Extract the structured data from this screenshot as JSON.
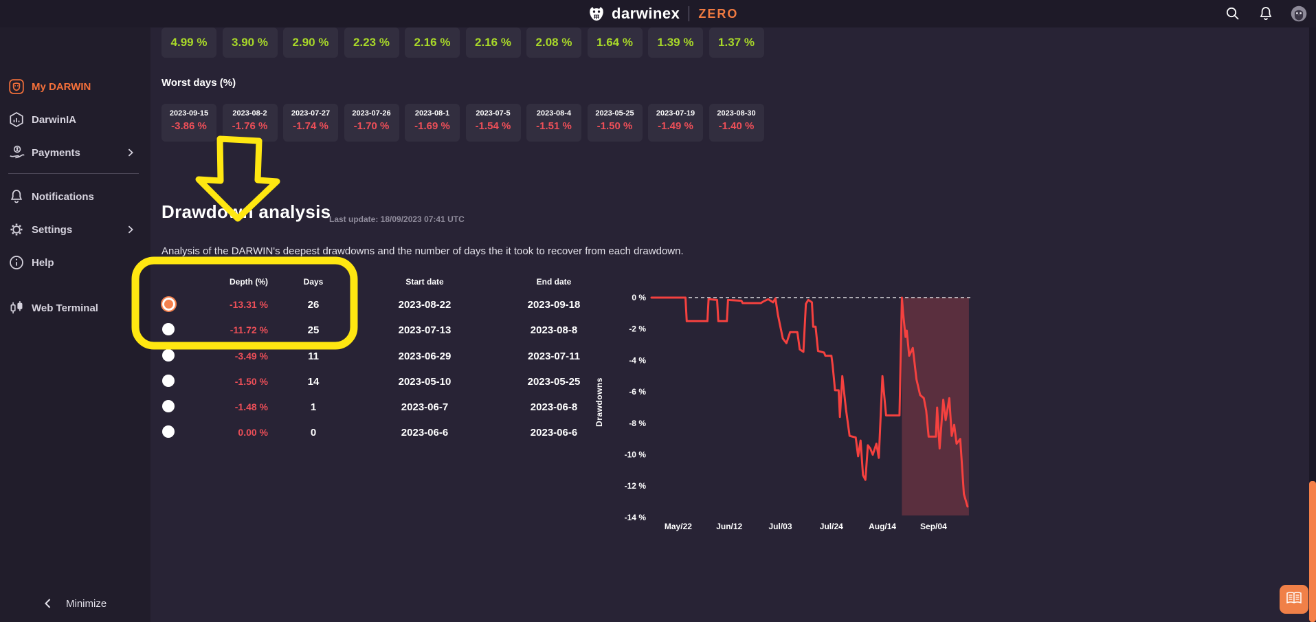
{
  "navbar": {
    "brand": "darwinex",
    "brand_suffix": "ZERO"
  },
  "sidebar": {
    "items": [
      {
        "label": "My DARWIN",
        "icon": "owl-badge",
        "active": true,
        "chevron": false
      },
      {
        "label": "DarwinIA",
        "icon": "hexagon-chart",
        "active": false,
        "chevron": false
      },
      {
        "label": "Payments",
        "icon": "payments-hand",
        "active": false,
        "chevron": true
      },
      {
        "label": "Notifications",
        "icon": "bell",
        "active": false,
        "chevron": false
      },
      {
        "label": "Settings",
        "icon": "gear",
        "active": false,
        "chevron": true
      },
      {
        "label": "Help",
        "icon": "info",
        "active": false,
        "chevron": false
      },
      {
        "label": "Web Terminal",
        "icon": "candles",
        "active": false,
        "chevron": false
      }
    ],
    "minimize_label": "Minimize"
  },
  "best_days": {
    "values": [
      "4.99 %",
      "3.90 %",
      "2.90 %",
      "2.23 %",
      "2.16 %",
      "2.16 %",
      "2.08 %",
      "1.64 %",
      "1.39 %",
      "1.37 %"
    ]
  },
  "worst_days": {
    "title": "Worst days (%)",
    "cards": [
      {
        "date": "2023-09-15",
        "value": "-3.86 %"
      },
      {
        "date": "2023-08-2",
        "value": "-1.76 %"
      },
      {
        "date": "2023-07-27",
        "value": "-1.74 %"
      },
      {
        "date": "2023-07-26",
        "value": "-1.70 %"
      },
      {
        "date": "2023-08-1",
        "value": "-1.69 %"
      },
      {
        "date": "2023-07-5",
        "value": "-1.54 %"
      },
      {
        "date": "2023-08-4",
        "value": "-1.51 %"
      },
      {
        "date": "2023-05-25",
        "value": "-1.50 %"
      },
      {
        "date": "2023-07-19",
        "value": "-1.49 %"
      },
      {
        "date": "2023-08-30",
        "value": "-1.40 %"
      }
    ]
  },
  "drawdown_section": {
    "title": "Drawdown analysis",
    "last_update": "Last update: 18/09/2023 07:41 UTC",
    "description": "Analysis of the DARWIN's deepest drawdowns and the number of days the it took to recover from each drawdown.",
    "table": {
      "headers": {
        "depth": "Depth (%)",
        "days": "Days",
        "start": "Start date",
        "end": "End date"
      },
      "rows": [
        {
          "depth": "-13.31 %",
          "days": "26",
          "start": "2023-08-22",
          "end": "2023-09-18",
          "selected": true
        },
        {
          "depth": "-11.72 %",
          "days": "25",
          "start": "2023-07-13",
          "end": "2023-08-8",
          "selected": false
        },
        {
          "depth": "-3.49 %",
          "days": "11",
          "start": "2023-06-29",
          "end": "2023-07-11",
          "selected": false
        },
        {
          "depth": "-1.50 %",
          "days": "14",
          "start": "2023-05-10",
          "end": "2023-05-25",
          "selected": false
        },
        {
          "depth": "-1.48 %",
          "days": "1",
          "start": "2023-06-7",
          "end": "2023-06-8",
          "selected": false
        },
        {
          "depth": "0.00 %",
          "days": "0",
          "start": "2023-06-6",
          "end": "2023-06-6",
          "selected": false
        }
      ]
    }
  },
  "chart_data": {
    "type": "line",
    "ylabel": "Drawdowns",
    "ylim": [
      -14,
      0
    ],
    "y_ticks": [
      "0 %",
      "-2 %",
      "-4 %",
      "-6 %",
      "-8 %",
      "-10 %",
      "-12 %",
      "-14 %"
    ],
    "x_ticks": [
      {
        "label": "May/22",
        "day": 11
      },
      {
        "label": "Jun/12",
        "day": 32
      },
      {
        "label": "Jul/03",
        "day": 53
      },
      {
        "label": "Jul/24",
        "day": 74
      },
      {
        "label": "Aug/14",
        "day": 95
      },
      {
        "label": "Sep/04",
        "day": 116
      }
    ],
    "x_range_days": [
      0,
      130
    ],
    "zero_line_dashed": true,
    "highlight_region": {
      "start_day": 103,
      "end_day": 130
    },
    "series": [
      {
        "name": "drawdown",
        "color": "#f5413f",
        "points": [
          [
            0,
            0
          ],
          [
            14,
            0
          ],
          [
            14.5,
            -1.5
          ],
          [
            23,
            -1.5
          ],
          [
            23.5,
            -0.1
          ],
          [
            27,
            -0.15
          ],
          [
            27.5,
            -1.5
          ],
          [
            31,
            -1.5
          ],
          [
            31.5,
            -0.15
          ],
          [
            37,
            -0.2
          ],
          [
            37.5,
            -0.35
          ],
          [
            45,
            -0.35
          ],
          [
            46,
            -0.25
          ],
          [
            48,
            -0.1
          ],
          [
            50,
            -0.3
          ],
          [
            51,
            -0.05
          ],
          [
            52,
            -1.1
          ],
          [
            54,
            -2.6
          ],
          [
            55.5,
            -2.9
          ],
          [
            57,
            -2.2
          ],
          [
            60,
            -2.2
          ],
          [
            61,
            -3.3
          ],
          [
            62.5,
            -3.45
          ],
          [
            63.5,
            -0.4
          ],
          [
            64.5,
            -0.15
          ],
          [
            66,
            -0.3
          ],
          [
            66.5,
            -1.85
          ],
          [
            67.5,
            -1.85
          ],
          [
            68.5,
            -3.4
          ],
          [
            71,
            -3.5
          ],
          [
            71.5,
            -3.7
          ],
          [
            74,
            -3.7
          ],
          [
            74.5,
            -4.3
          ],
          [
            75.5,
            -5.9
          ],
          [
            77,
            -5.9
          ],
          [
            77.5,
            -7.6
          ],
          [
            78.5,
            -5.0
          ],
          [
            80,
            -7.1
          ],
          [
            81.5,
            -8.8
          ],
          [
            84,
            -8.9
          ],
          [
            85,
            -10.1
          ],
          [
            86,
            -9.1
          ],
          [
            87,
            -11.3
          ],
          [
            88,
            -11.6
          ],
          [
            89,
            -9.4
          ],
          [
            90,
            -9.6
          ],
          [
            91,
            -10.0
          ],
          [
            92.5,
            -9.3
          ],
          [
            93.5,
            -10.2
          ],
          [
            95,
            -5.0
          ],
          [
            96.5,
            -7.5
          ],
          [
            102,
            -7.5
          ],
          [
            103,
            0
          ],
          [
            103.5,
            -1.0
          ],
          [
            104.5,
            -2.5
          ],
          [
            105,
            -2.1
          ],
          [
            106,
            -3.7
          ],
          [
            107.5,
            -3.2
          ],
          [
            109,
            -5.2
          ],
          [
            110.5,
            -6.2
          ],
          [
            112,
            -6.4
          ],
          [
            113,
            -7.2
          ],
          [
            114,
            -8.85
          ],
          [
            117,
            -8.85
          ],
          [
            117.5,
            -7.0
          ],
          [
            118.5,
            -9.6
          ],
          [
            120,
            -6.5
          ],
          [
            121,
            -7.8
          ],
          [
            122.5,
            -6.4
          ],
          [
            123.5,
            -8.8
          ],
          [
            124.5,
            -8.1
          ],
          [
            125.5,
            -9.3
          ],
          [
            127,
            -9.0
          ],
          [
            128.5,
            -12.5
          ],
          [
            130,
            -13.3
          ]
        ]
      }
    ]
  },
  "colors": {
    "accent_orange": "#f0783c",
    "positive_green": "#a8d829",
    "negative_red": "#ed4f58",
    "chart_line_red": "#f5413f",
    "annotation_yellow": "#ffe711",
    "highlight_fill": "#f0545c"
  }
}
